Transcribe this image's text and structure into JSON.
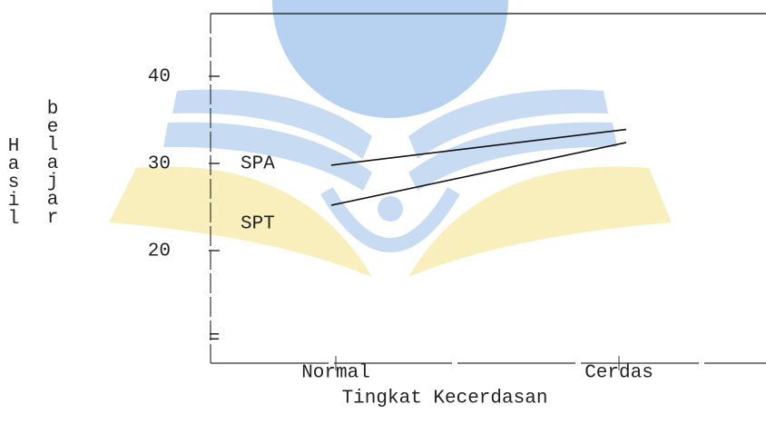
{
  "chart_data": {
    "type": "line",
    "x_label": "Tingkat Kecerdasan",
    "y_label": [
      "Hasil",
      "belajar"
    ],
    "categories": [
      "Normal",
      "Cerdas"
    ],
    "series": [
      {
        "name": "SPA",
        "color": "#111111",
        "values": [
          29.8,
          33.9
        ]
      },
      {
        "name": "SPT",
        "color": "#111111",
        "values": [
          25.2,
          32.4
        ]
      }
    ],
    "ylim": [
      7,
      47
    ],
    "yticks": [
      20,
      30,
      40
    ]
  }
}
